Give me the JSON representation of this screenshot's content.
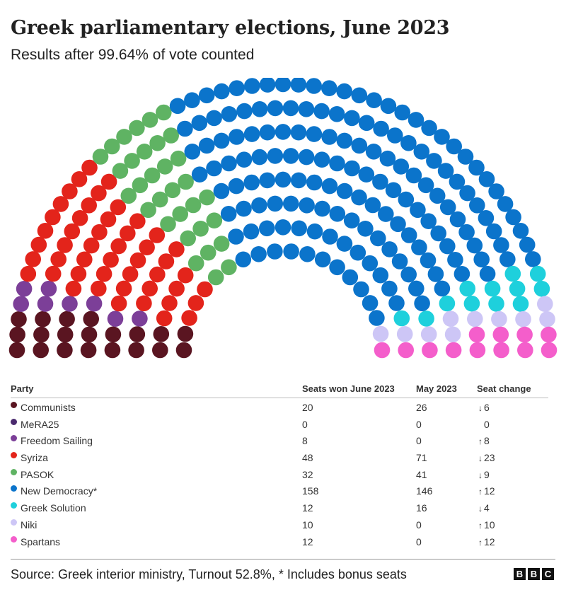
{
  "title": "Greek parliamentary elections, June 2023",
  "subtitle": "Results after 99.64% of vote counted",
  "table": {
    "headers": {
      "party": "Party",
      "june": "Seats won June 2023",
      "may": "May 2023",
      "change": "Seat change"
    }
  },
  "chart_data": {
    "type": "hemicycle",
    "total_seats": 300,
    "parties": [
      {
        "name": "Communists",
        "color": "#5a1521",
        "seats_june": 20,
        "seats_may": 26,
        "change": "6",
        "direction": "down"
      },
      {
        "name": "MeRA25",
        "color": "#4a2a6e",
        "seats_june": 0,
        "seats_may": 0,
        "change": "0",
        "direction": "none"
      },
      {
        "name": "Freedom Sailing",
        "color": "#7c3f98",
        "seats_june": 8,
        "seats_may": 0,
        "change": "8",
        "direction": "up"
      },
      {
        "name": "Syriza",
        "color": "#e3241b",
        "seats_june": 48,
        "seats_may": 71,
        "change": "23",
        "direction": "down"
      },
      {
        "name": "PASOK",
        "color": "#5fb363",
        "seats_june": 32,
        "seats_may": 41,
        "change": "9",
        "direction": "down"
      },
      {
        "name": "New Democracy*",
        "color": "#0b74cb",
        "seats_june": 158,
        "seats_may": 146,
        "change": "12",
        "direction": "up"
      },
      {
        "name": "Greek Solution",
        "color": "#1ed0dc",
        "seats_june": 12,
        "seats_may": 16,
        "change": "4",
        "direction": "down"
      },
      {
        "name": "Niki",
        "color": "#cdc6f6",
        "seats_june": 10,
        "seats_may": 0,
        "change": "10",
        "direction": "up"
      },
      {
        "name": "Spartans",
        "color": "#f45ecb",
        "seats_june": 12,
        "seats_may": 0,
        "change": "12",
        "direction": "up"
      }
    ]
  },
  "footer": {
    "source": "Source: Greek interior ministry, Turnout 52.8%, * Includes bonus seats",
    "logo": [
      "B",
      "B",
      "C"
    ]
  }
}
